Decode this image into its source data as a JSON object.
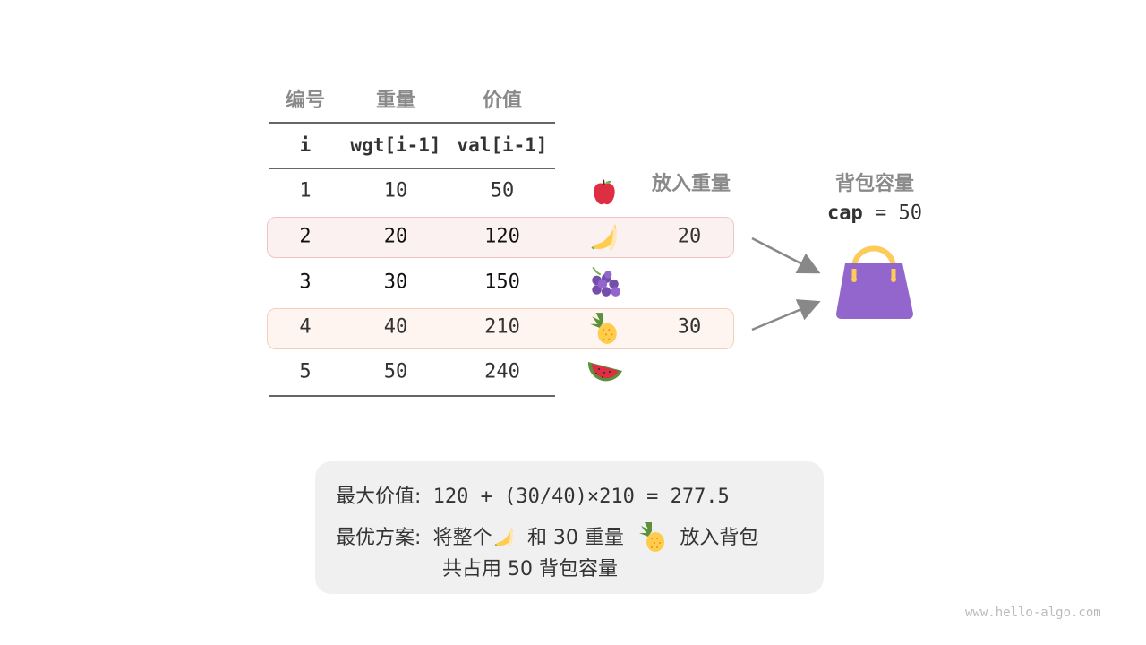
{
  "table": {
    "headers": [
      "编号",
      "重量",
      "价值"
    ],
    "subheaders": [
      "i",
      "wgt[i-1]",
      "val[i-1]"
    ],
    "rows": [
      {
        "i": "1",
        "wgt": "10",
        "val": "50",
        "fruit": "apple-icon",
        "put": ""
      },
      {
        "i": "2",
        "wgt": "20",
        "val": "120",
        "fruit": "banana-icon",
        "put": "20"
      },
      {
        "i": "3",
        "wgt": "30",
        "val": "150",
        "fruit": "grapes-icon",
        "put": ""
      },
      {
        "i": "4",
        "wgt": "40",
        "val": "210",
        "fruit": "pineapple-icon",
        "put": "30"
      },
      {
        "i": "5",
        "wgt": "50",
        "val": "240",
        "fruit": "watermelon-icon",
        "put": ""
      }
    ],
    "put_header": "放入重量"
  },
  "knapsack": {
    "title": "背包容量",
    "cap_label": "cap",
    "cap_rest": " = 50",
    "icon": "handbag-icon",
    "color": "#9166cc"
  },
  "summary": {
    "line1_label": "最大价值:",
    "line1_value": "120 + (30/40)×210 = 277.5",
    "line2_label": "最优方案:",
    "line2_a": "将整个",
    "line2_b": "和 30 重量",
    "line2_c": "放入背包",
    "line3": "共占用 50 背包容量"
  },
  "colors": {
    "row2_bg": "#fcf1f1",
    "row2_border": "#f3c3c3",
    "row4_bg": "#fef5f0",
    "row4_border": "#f8ccb8"
  },
  "footer": "www.hello-algo.com"
}
